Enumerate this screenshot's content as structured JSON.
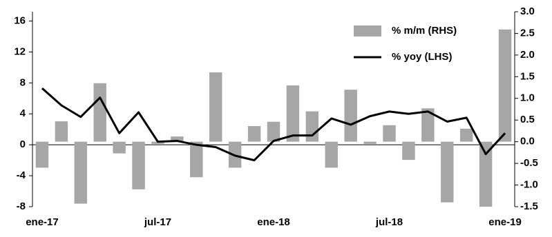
{
  "chart_data": {
    "type": "bar-line",
    "categories": [
      "ene-17",
      null,
      null,
      null,
      null,
      null,
      "jul-17",
      null,
      null,
      null,
      null,
      null,
      "ene-18",
      null,
      null,
      null,
      null,
      null,
      "jul-18",
      null,
      null,
      null,
      null,
      null,
      "ene-19"
    ],
    "series": [
      {
        "name": "% m/m (RHS)",
        "type": "bar",
        "axis": "y2",
        "color": "#a6a6a6",
        "values": [
          -0.6,
          0.47,
          -1.43,
          1.35,
          -0.27,
          -1.1,
          -0.05,
          0.12,
          -0.82,
          1.6,
          -0.6,
          0.36,
          0.46,
          1.3,
          0.7,
          -0.6,
          1.2,
          -0.05,
          0.38,
          -0.42,
          0.77,
          -1.4,
          0.3,
          -1.5,
          2.59
        ]
      },
      {
        "name": "% yoy (LHS)",
        "type": "line",
        "axis": "y",
        "color": "#000000",
        "values": [
          7.3,
          5.1,
          3.6,
          6.1,
          1.5,
          4.2,
          0.4,
          0.5,
          0,
          -0.3,
          -1.4,
          -2.0,
          0.5,
          1.2,
          1.2,
          3.4,
          2.6,
          3.7,
          4.3,
          4.0,
          4.3,
          3.0,
          3.5,
          -1.2,
          1.5
        ]
      }
    ],
    "ylim": [
      -8,
      17.2
    ],
    "yticks": [
      -8,
      -4,
      0,
      4,
      8,
      12,
      16
    ],
    "y2lim": [
      -1.5,
      3.0
    ],
    "y2ticks": [
      -1.5,
      {
        "value": -1,
        "label": "-1.0"
      },
      -0.5,
      {
        "value": 0,
        "label": "0.0"
      },
      0.5,
      {
        "value": 1,
        "label": "1.0"
      },
      1.5,
      {
        "value": 2,
        "label": "2.0"
      },
      2.5,
      {
        "value": 3,
        "label": "3.0"
      }
    ],
    "legend": "top-right",
    "grid": false
  }
}
